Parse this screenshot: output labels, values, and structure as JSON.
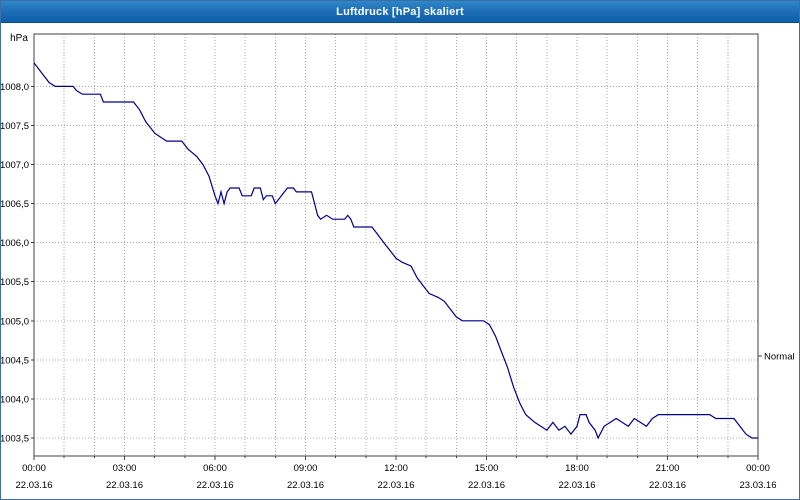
{
  "window": {
    "title": "Luftdruck [hPa] skaliert"
  },
  "chart_data": {
    "type": "line",
    "title": "Luftdruck [hPa] skaliert",
    "xlabel": "",
    "ylabel": "hPa",
    "grid": "dotted",
    "xlim": [
      0,
      24
    ],
    "ylim": [
      1003.27,
      1008.67
    ],
    "minor_x_step_hours": 1,
    "colors": {
      "line": "#00008b",
      "grid": "#a8a8a8",
      "axis": "#404040",
      "plot_bg": "#ffffff"
    },
    "y_ticks": [
      {
        "value": 1008.0,
        "label": "1008,0"
      },
      {
        "value": 1007.5,
        "label": "1007,5"
      },
      {
        "value": 1007.0,
        "label": "1007,0"
      },
      {
        "value": 1006.5,
        "label": "1006,5"
      },
      {
        "value": 1006.0,
        "label": "1006,0"
      },
      {
        "value": 1005.5,
        "label": "1005,5"
      },
      {
        "value": 1005.0,
        "label": "1005,0"
      },
      {
        "value": 1004.5,
        "label": "1004,5"
      },
      {
        "value": 1004.0,
        "label": "1004,0"
      },
      {
        "value": 1003.5,
        "label": "1003,5"
      }
    ],
    "x_ticks_major": [
      {
        "t": 0,
        "time": "00:00",
        "date": "22.03.16"
      },
      {
        "t": 3,
        "time": "03:00",
        "date": "22.03.16"
      },
      {
        "t": 6,
        "time": "06:00",
        "date": "22.03.16"
      },
      {
        "t": 9,
        "time": "09:00",
        "date": "22.03.16"
      },
      {
        "t": 12,
        "time": "12:00",
        "date": "22.03.16"
      },
      {
        "t": 15,
        "time": "15:00",
        "date": "22.03.16"
      },
      {
        "t": 18,
        "time": "18:00",
        "date": "22.03.16"
      },
      {
        "t": 21,
        "time": "21:00",
        "date": "22.03.16"
      },
      {
        "t": 24,
        "time": "00:00",
        "date": "23.03.16"
      }
    ],
    "annotations": [
      {
        "label": "Normal",
        "value": 1004.55,
        "side": "right"
      }
    ],
    "series": [
      {
        "name": "Luftdruck",
        "color": "#00008b",
        "points": [
          [
            0.0,
            1008.3
          ],
          [
            0.1,
            1008.25
          ],
          [
            0.3,
            1008.15
          ],
          [
            0.5,
            1008.05
          ],
          [
            0.7,
            1008.0
          ],
          [
            1.3,
            1008.0
          ],
          [
            1.4,
            1007.95
          ],
          [
            1.6,
            1007.9
          ],
          [
            2.2,
            1007.9
          ],
          [
            2.3,
            1007.8
          ],
          [
            3.3,
            1007.8
          ],
          [
            3.5,
            1007.7
          ],
          [
            3.7,
            1007.55
          ],
          [
            3.9,
            1007.45
          ],
          [
            4.0,
            1007.4
          ],
          [
            4.2,
            1007.35
          ],
          [
            4.4,
            1007.3
          ],
          [
            4.9,
            1007.3
          ],
          [
            5.1,
            1007.2
          ],
          [
            5.4,
            1007.1
          ],
          [
            5.6,
            1007.0
          ],
          [
            5.8,
            1006.85
          ],
          [
            6.0,
            1006.6
          ],
          [
            6.1,
            1006.5
          ],
          [
            6.2,
            1006.65
          ],
          [
            6.3,
            1006.5
          ],
          [
            6.4,
            1006.65
          ],
          [
            6.5,
            1006.7
          ],
          [
            6.8,
            1006.7
          ],
          [
            6.9,
            1006.6
          ],
          [
            7.2,
            1006.6
          ],
          [
            7.3,
            1006.7
          ],
          [
            7.5,
            1006.7
          ],
          [
            7.6,
            1006.55
          ],
          [
            7.7,
            1006.6
          ],
          [
            7.9,
            1006.6
          ],
          [
            8.0,
            1006.5
          ],
          [
            8.2,
            1006.6
          ],
          [
            8.4,
            1006.7
          ],
          [
            8.6,
            1006.7
          ],
          [
            8.7,
            1006.65
          ],
          [
            9.2,
            1006.65
          ],
          [
            9.3,
            1006.5
          ],
          [
            9.4,
            1006.35
          ],
          [
            9.5,
            1006.3
          ],
          [
            9.7,
            1006.35
          ],
          [
            9.9,
            1006.3
          ],
          [
            10.3,
            1006.3
          ],
          [
            10.4,
            1006.35
          ],
          [
            10.5,
            1006.3
          ],
          [
            10.6,
            1006.2
          ],
          [
            11.2,
            1006.2
          ],
          [
            11.4,
            1006.1
          ],
          [
            11.6,
            1006.0
          ],
          [
            11.8,
            1005.9
          ],
          [
            12.0,
            1005.8
          ],
          [
            12.2,
            1005.75
          ],
          [
            12.5,
            1005.7
          ],
          [
            12.7,
            1005.55
          ],
          [
            12.9,
            1005.45
          ],
          [
            13.1,
            1005.35
          ],
          [
            13.4,
            1005.3
          ],
          [
            13.6,
            1005.25
          ],
          [
            13.8,
            1005.15
          ],
          [
            14.0,
            1005.05
          ],
          [
            14.2,
            1005.0
          ],
          [
            14.9,
            1005.0
          ],
          [
            15.1,
            1004.95
          ],
          [
            15.3,
            1004.8
          ],
          [
            15.5,
            1004.6
          ],
          [
            15.7,
            1004.4
          ],
          [
            15.9,
            1004.15
          ],
          [
            16.1,
            1003.95
          ],
          [
            16.3,
            1003.8
          ],
          [
            16.6,
            1003.7
          ],
          [
            16.8,
            1003.65
          ],
          [
            17.0,
            1003.6
          ],
          [
            17.2,
            1003.7
          ],
          [
            17.4,
            1003.6
          ],
          [
            17.6,
            1003.65
          ],
          [
            17.8,
            1003.55
          ],
          [
            18.0,
            1003.65
          ],
          [
            18.1,
            1003.8
          ],
          [
            18.3,
            1003.8
          ],
          [
            18.4,
            1003.7
          ],
          [
            18.6,
            1003.6
          ],
          [
            18.7,
            1003.5
          ],
          [
            18.9,
            1003.65
          ],
          [
            19.1,
            1003.7
          ],
          [
            19.3,
            1003.75
          ],
          [
            19.5,
            1003.7
          ],
          [
            19.7,
            1003.65
          ],
          [
            19.9,
            1003.75
          ],
          [
            20.1,
            1003.7
          ],
          [
            20.3,
            1003.65
          ],
          [
            20.5,
            1003.75
          ],
          [
            20.7,
            1003.8
          ],
          [
            21.0,
            1003.8
          ],
          [
            22.4,
            1003.8
          ],
          [
            22.6,
            1003.75
          ],
          [
            23.2,
            1003.75
          ],
          [
            23.4,
            1003.65
          ],
          [
            23.6,
            1003.55
          ],
          [
            23.8,
            1003.5
          ],
          [
            24.0,
            1003.5
          ]
        ]
      }
    ]
  }
}
